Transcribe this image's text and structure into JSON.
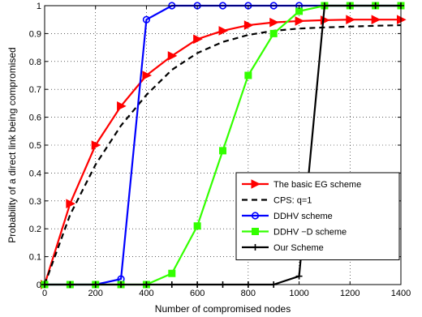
{
  "chart_data": {
    "type": "line",
    "title": "",
    "xlabel": "Number of compromised nodes",
    "ylabel": "Probability of a direct link being compromised",
    "xlim": [
      0,
      1400
    ],
    "ylim": [
      0,
      1
    ],
    "xticks": [
      0,
      200,
      400,
      600,
      800,
      1000,
      1200,
      1400
    ],
    "yticks": [
      0,
      0.1,
      0.2,
      0.3,
      0.4,
      0.5,
      0.6,
      0.7,
      0.8,
      0.9,
      1
    ],
    "xtick_labels": [
      "0",
      "200",
      "400",
      "600",
      "800",
      "1000",
      "1200",
      "1400"
    ],
    "ytick_labels": [
      "0",
      "0.1",
      "0.2",
      "0.3",
      "0.4",
      "0.5",
      "0.6",
      "0.7",
      "0.8",
      "0.9",
      "1"
    ],
    "grid": true,
    "legend_position": "lower-right",
    "series": [
      {
        "name": "The basic EG scheme",
        "color": "#ff0000",
        "line": "solid",
        "marker": "triangle-right",
        "x": [
          0,
          100,
          200,
          300,
          400,
          500,
          600,
          700,
          800,
          900,
          1000,
          1100,
          1200,
          1300,
          1400
        ],
        "y": [
          0,
          0.29,
          0.5,
          0.64,
          0.75,
          0.82,
          0.88,
          0.91,
          0.93,
          0.94,
          0.945,
          0.948,
          0.95,
          0.95,
          0.95
        ]
      },
      {
        "name": "CPS: q=1",
        "color": "#000000",
        "line": "dashed",
        "marker": "none",
        "x": [
          0,
          100,
          200,
          300,
          400,
          500,
          600,
          700,
          800,
          900,
          1000,
          1100,
          1200,
          1300,
          1400
        ],
        "y": [
          0,
          0.25,
          0.43,
          0.57,
          0.68,
          0.77,
          0.83,
          0.87,
          0.895,
          0.91,
          0.918,
          0.922,
          0.925,
          0.928,
          0.93
        ]
      },
      {
        "name": "DDHV scheme",
        "color": "#0000ff",
        "line": "solid",
        "marker": "circle",
        "x": [
          0,
          100,
          200,
          300,
          400,
          500,
          600,
          700,
          800,
          900,
          1000,
          1100,
          1200,
          1300,
          1400
        ],
        "y": [
          0,
          0,
          0,
          0.02,
          0.95,
          1,
          1,
          1,
          1,
          1,
          1,
          1,
          1,
          1,
          1
        ]
      },
      {
        "name": "DDHV −D scheme",
        "color": "#33ff00",
        "line": "solid",
        "marker": "square",
        "x": [
          0,
          100,
          200,
          300,
          400,
          500,
          600,
          700,
          800,
          900,
          1000,
          1100,
          1200,
          1300,
          1400
        ],
        "y": [
          0,
          0,
          0,
          0,
          0,
          0.04,
          0.21,
          0.48,
          0.75,
          0.9,
          0.98,
          1,
          1,
          1,
          1
        ]
      },
      {
        "name": "Our Scheme",
        "color": "#000000",
        "line": "solid",
        "marker": "plus",
        "x": [
          0,
          100,
          200,
          300,
          400,
          500,
          600,
          700,
          800,
          900,
          1000,
          1100,
          1200,
          1300,
          1400
        ],
        "y": [
          0,
          0,
          0,
          0,
          0,
          0,
          0,
          0,
          0,
          0,
          0.03,
          1,
          1,
          1,
          1
        ]
      }
    ]
  }
}
